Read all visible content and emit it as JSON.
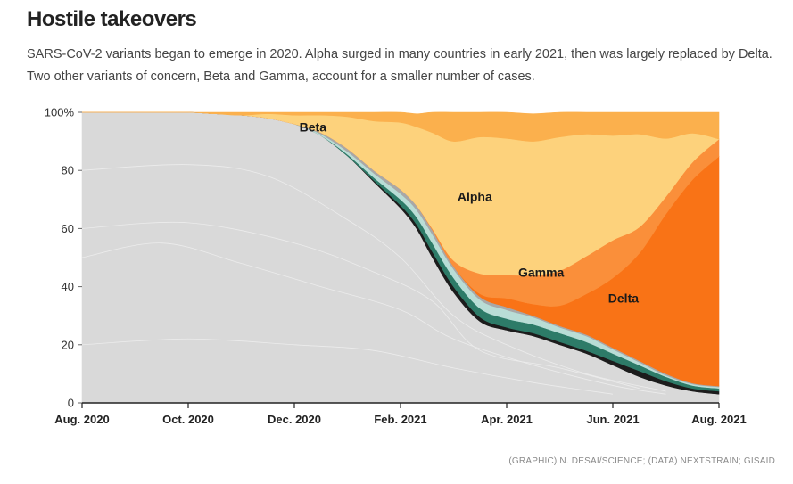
{
  "title": "Hostile takeovers",
  "subtitle": "SARS-CoV-2 variants began to emerge in 2020. Alpha surged in many countries in early 2021, then was largely replaced by Delta. Two other variants of concern, Beta and Gamma, account for a smaller number of cases.",
  "credit": "(GRAPHIC) N. DESAI/SCIENCE; (DATA) NEXTSTRAIN; GISAID",
  "chart_data": {
    "type": "area",
    "title": "Hostile takeovers",
    "xlabel": "",
    "ylabel": "",
    "ylim": [
      0,
      100
    ],
    "yticks": [
      0,
      20,
      40,
      60,
      80,
      100
    ],
    "ytick_labels": [
      "0",
      "20",
      "40",
      "60",
      "80",
      "100%"
    ],
    "xticks": [
      0,
      2,
      4,
      6,
      8,
      10,
      12
    ],
    "xtick_labels": [
      "Aug. 2020",
      "Oct. 2020",
      "Dec. 2020",
      "Feb. 2021",
      "Apr. 2021",
      "Jun. 2021",
      "Aug. 2021"
    ],
    "x": [
      0,
      1,
      2,
      2.5,
      3,
      3.5,
      4,
      4.5,
      5,
      5.5,
      6,
      6.3,
      6.6,
      7,
      7.5,
      8,
      8.5,
      9,
      9.5,
      10,
      10.5,
      11,
      11.5,
      12
    ],
    "series": [
      {
        "name": "",
        "color": "#d9d9d9",
        "values": [
          100,
          100,
          100,
          99.5,
          99,
          98,
          96,
          92,
          85,
          76,
          67,
          60,
          50,
          38,
          28,
          25,
          23,
          20,
          17,
          13,
          9,
          6,
          4,
          3
        ]
      },
      {
        "name": "",
        "color": "#1c1c1c",
        "values": [
          0,
          0,
          0,
          0,
          0,
          0,
          0,
          0,
          0,
          0.5,
          1,
          1.5,
          2,
          2,
          1.5,
          1,
          1,
          1,
          1,
          1.5,
          2,
          1.5,
          1,
          1
        ]
      },
      {
        "name": "",
        "color": "#2d7b68",
        "values": [
          0,
          0,
          0,
          0,
          0,
          0,
          0,
          0,
          0.5,
          1,
          2,
          2.5,
          3,
          3,
          3,
          3,
          3,
          3,
          3,
          2.5,
          2,
          1.5,
          1,
          1
        ]
      },
      {
        "name": "",
        "color": "#b9ddd6",
        "values": [
          0,
          0,
          0,
          0,
          0,
          0,
          0,
          0.5,
          1,
          1.5,
          2,
          2.5,
          3,
          3,
          3,
          3,
          2.5,
          2,
          2,
          1.5,
          1,
          0.5,
          0.5,
          0.5
        ]
      },
      {
        "name": "",
        "color": "#a8a8a8",
        "values": [
          0,
          0,
          0,
          0,
          0,
          0,
          0,
          0.5,
          1,
          1,
          1.5,
          1.5,
          1.5,
          1,
          1,
          1,
          0.5,
          0.5,
          0.5,
          0.5,
          0.5,
          0.5,
          0.3,
          0.3
        ]
      },
      {
        "name": "Delta",
        "color": "#f97316",
        "values": [
          0,
          0,
          0,
          0,
          0,
          0,
          0,
          0,
          0,
          0,
          0,
          0,
          0,
          0,
          1,
          3,
          4,
          7,
          14,
          24,
          37,
          55,
          70,
          79
        ]
      },
      {
        "name": "Gamma",
        "color": "#fa8f3a",
        "values": [
          0,
          0,
          0,
          0,
          0,
          0,
          0,
          0,
          0,
          0,
          0,
          0,
          0.5,
          2,
          7,
          8,
          10,
          12,
          13,
          13,
          9,
          6,
          6,
          6
        ]
      },
      {
        "name": "Alpha",
        "color": "#fdd27c",
        "values": [
          0,
          0,
          0,
          0,
          0,
          1.5,
          3,
          6,
          11,
          17,
          23,
          27,
          33,
          41,
          47,
          47,
          46,
          46,
          42,
          36,
          32,
          20,
          10,
          0
        ]
      },
      {
        "name": "Beta",
        "color": "#fbb04d",
        "values": [
          0,
          0,
          0,
          0.5,
          1,
          0.5,
          1,
          1,
          1.5,
          3,
          3.5,
          4.5,
          7,
          10,
          8.5,
          9,
          9.5,
          8.5,
          7.5,
          8,
          7.5,
          9,
          7.2,
          9.2
        ]
      }
    ],
    "labels": [
      {
        "text": "Beta",
        "x": 4.35,
        "y": 95
      },
      {
        "text": "Alpha",
        "x": 7.4,
        "y": 71
      },
      {
        "text": "Gamma",
        "x": 8.65,
        "y": 45
      },
      {
        "text": "Delta",
        "x": 10.2,
        "y": 36
      }
    ]
  }
}
